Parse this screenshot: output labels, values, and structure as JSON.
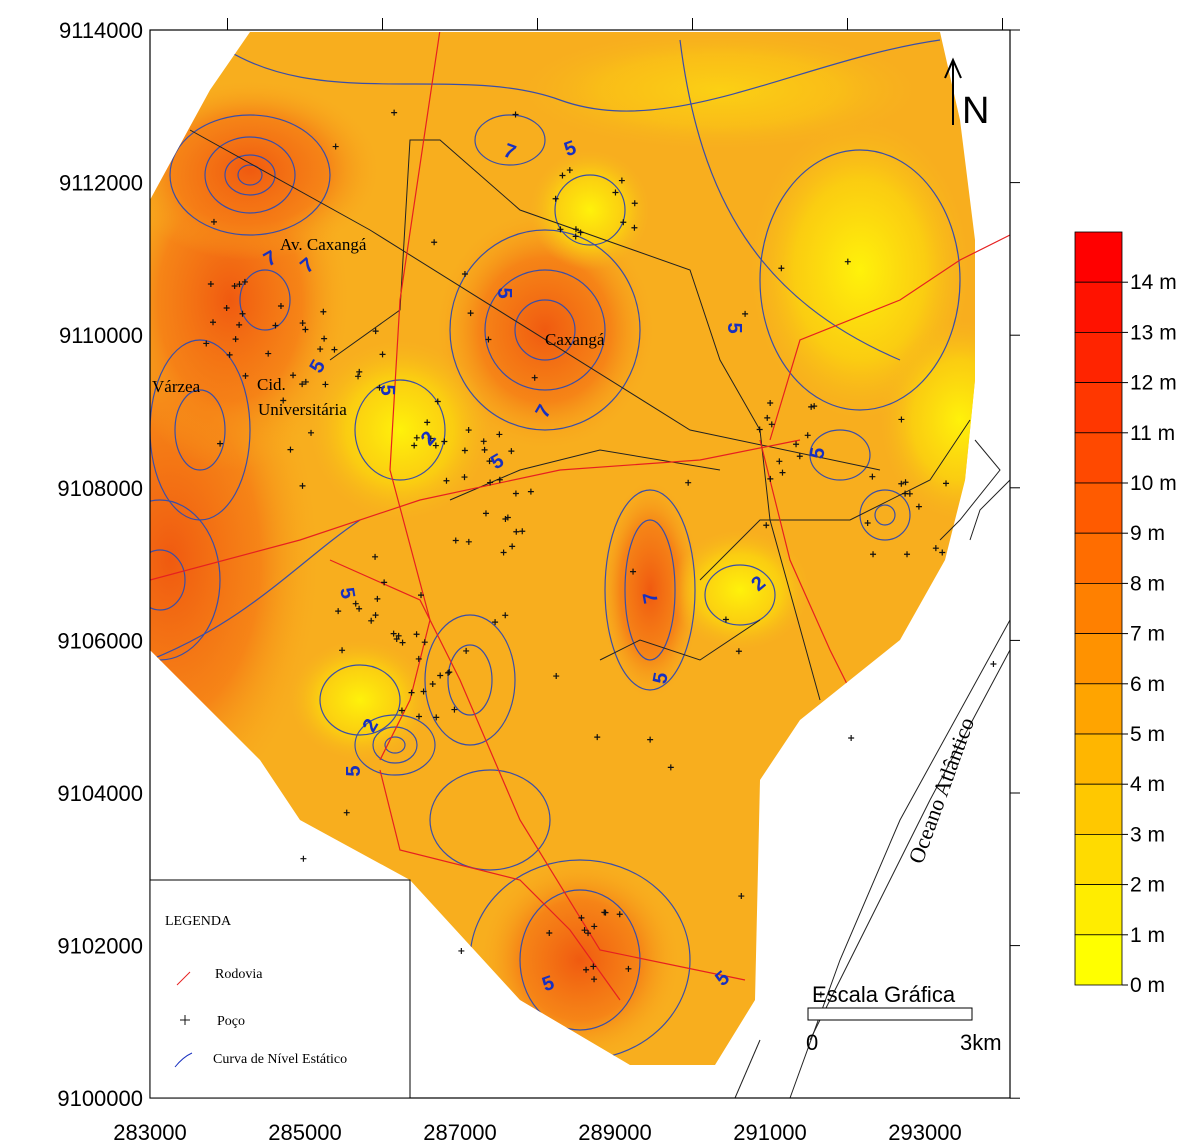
{
  "y_axis_labels": [
    "9114000",
    "9112000",
    "9110000",
    "9108000",
    "9106000",
    "9104000",
    "9102000",
    "9100000"
  ],
  "x_axis_labels": [
    "283000",
    "285000",
    "287000",
    "289000",
    "291000",
    "293000"
  ],
  "colorbar_labels": [
    "14 m",
    "13 m",
    "12 m",
    "11 m",
    "10 m",
    "9 m",
    "8 m",
    "7 m",
    "6 m",
    "5 m",
    "4 m",
    "3 m",
    "2 m",
    "1 m",
    "0 m"
  ],
  "places": [
    "Av. Caxangá",
    "Caxangá",
    "Várzea",
    "Cid.",
    "Universitária"
  ],
  "ocean": "Oceano Atlântico",
  "north": "N",
  "scale": {
    "title": "Escala Gráfica",
    "start": "0",
    "end": "3km"
  },
  "legend": {
    "title": "LEGENDA",
    "items": [
      "Rodovia",
      "Poço",
      "Curva de Nível Estático"
    ]
  },
  "contour_labels": [
    "7",
    "5",
    "7",
    "7",
    "5",
    "5",
    "5",
    "5",
    "2",
    "5",
    "7",
    "5",
    "2",
    "5",
    "7",
    "5",
    "2",
    "5",
    "5",
    "5"
  ]
}
